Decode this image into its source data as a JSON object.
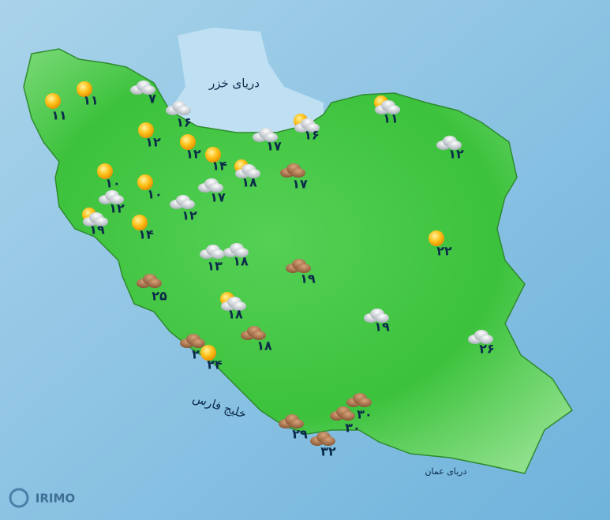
{
  "map": {
    "seas": {
      "caspian": "دریای خزر",
      "persian_gulf": "خلیج فارس",
      "oman": "دریای عمان"
    },
    "logo": "IRIMO",
    "stations": [
      {
        "label": "۱۱",
        "icon": "sunny"
      },
      {
        "label": "۱۱",
        "icon": "sunny"
      },
      {
        "label": "۷",
        "icon": "cloudy"
      },
      {
        "label": "۱۶",
        "icon": "cloudy"
      },
      {
        "label": "۱۲",
        "icon": "sunny"
      },
      {
        "label": "۱۲",
        "icon": "sunny"
      },
      {
        "label": "۱۴",
        "icon": "sunny"
      },
      {
        "label": "۱۸",
        "icon": "partly"
      },
      {
        "label": "۱۷",
        "icon": "cloudy"
      },
      {
        "label": "۱۶",
        "icon": "partly"
      },
      {
        "label": "۱۷",
        "icon": "dust"
      },
      {
        "label": "۱۱",
        "icon": "partly"
      },
      {
        "label": "۱۲",
        "icon": "cloudy"
      },
      {
        "label": "۱۰",
        "icon": "sunny"
      },
      {
        "label": "۱۰",
        "icon": "sunny"
      },
      {
        "label": "۱۲",
        "icon": "cloudy"
      },
      {
        "label": "۱۷",
        "icon": "cloudy"
      },
      {
        "label": "۱۲",
        "icon": "cloudy"
      },
      {
        "label": "۱۹",
        "icon": "partly"
      },
      {
        "label": "۱۴",
        "icon": "sunny"
      },
      {
        "label": "۱۳",
        "icon": "cloudy"
      },
      {
        "label": "۱۸",
        "icon": "cloudy"
      },
      {
        "label": "۱۹",
        "icon": "dust"
      },
      {
        "label": "۲۲",
        "icon": "sunny"
      },
      {
        "label": "۲۵",
        "icon": "dust"
      },
      {
        "label": "۱۸",
        "icon": "partly"
      },
      {
        "label": "۱۹",
        "icon": "cloudy"
      },
      {
        "label": "۱۸",
        "icon": "dust"
      },
      {
        "label": "۲۶",
        "icon": "cloudy"
      },
      {
        "label": "۲",
        "icon": "dust"
      },
      {
        "label": "۲۴",
        "icon": "sunny"
      },
      {
        "label": "۳۰",
        "icon": "dust"
      },
      {
        "label": "۳۰",
        "icon": "dust"
      },
      {
        "label": "۲۹",
        "icon": "dust"
      },
      {
        "label": "۳۲",
        "icon": "dust"
      }
    ]
  }
}
